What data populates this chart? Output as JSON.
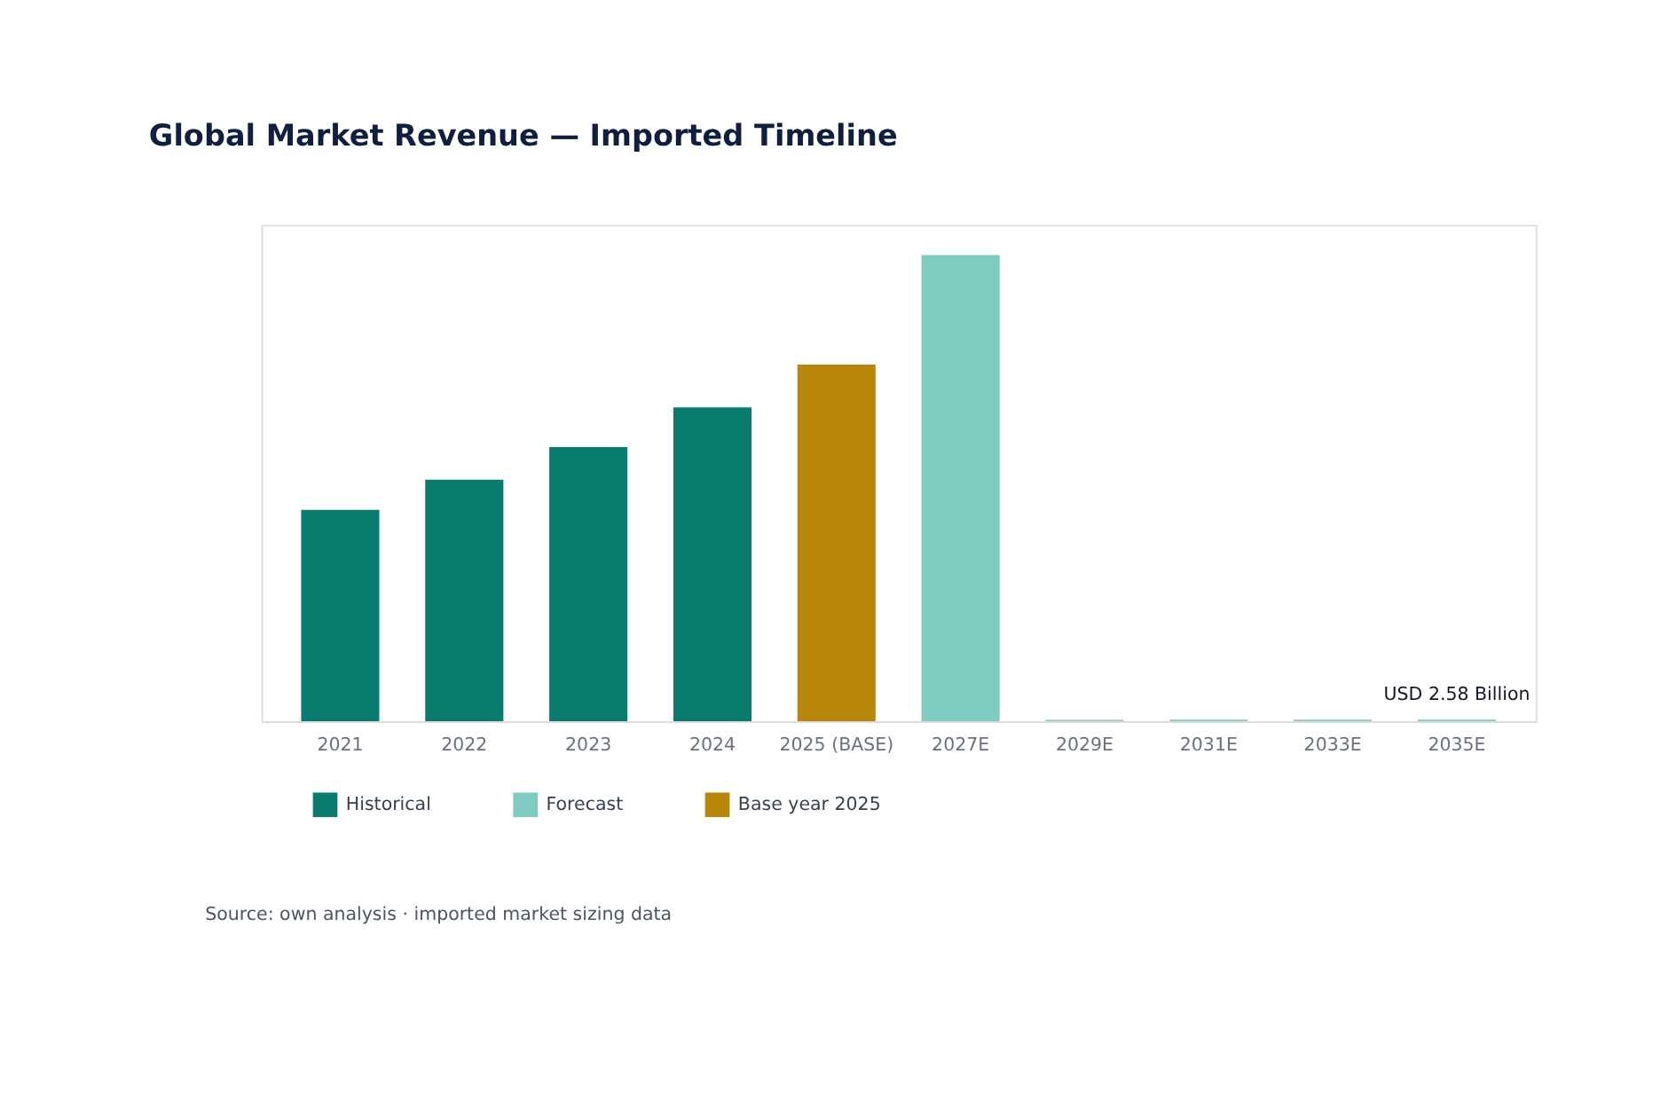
{
  "chart_data": {
    "type": "bar",
    "title": "Global Market Revenue — Imported Timeline",
    "categories": [
      "2021",
      "2022",
      "2023",
      "2024",
      "2025 (BASE)",
      "2027E",
      "2029E",
      "2031E",
      "2033E",
      "2035E"
    ],
    "ylim": [
      0,
      775
    ],
    "series": [
      {
        "name": "Historical",
        "color": "#0a7b6f",
        "values": [
          330,
          377,
          428,
          490,
          null,
          null,
          null,
          null,
          null,
          null
        ]
      },
      {
        "name": "Forecast",
        "color": "#7fcbc1",
        "values": [
          null,
          null,
          null,
          null,
          null,
          728,
          2.2,
          2.35,
          2.45,
          2.58
        ],
        "value_labels": [
          null,
          null,
          null,
          null,
          null,
          null,
          null,
          null,
          null,
          "USD 2.58 Billion"
        ]
      },
      {
        "name": "Base year 2025",
        "color": "#b8860b",
        "values": [
          null,
          null,
          null,
          null,
          557,
          null,
          null,
          null,
          null,
          null
        ]
      }
    ],
    "legend": "bottom left",
    "grid": false,
    "annotations": [
      "Source: own analysis · imported market sizing data"
    ]
  }
}
